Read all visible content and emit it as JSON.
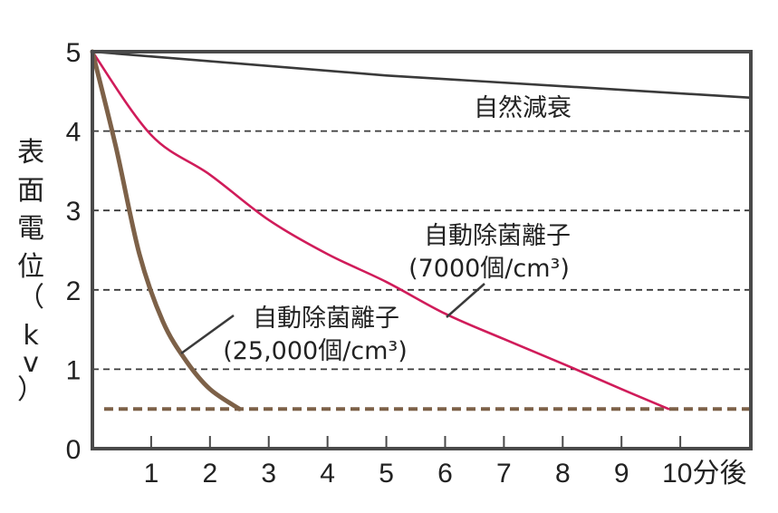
{
  "chart_data": {
    "type": "line",
    "title": "",
    "xlabel": "",
    "ylabel": "表面電位（kv）",
    "xlim": [
      0,
      11.2
    ],
    "ylim": [
      0,
      5
    ],
    "x_ticks": [
      "1",
      "2",
      "3",
      "4",
      "5",
      "6",
      "7",
      "8",
      "9",
      "10分後"
    ],
    "y_ticks": [
      "0",
      "1",
      "2",
      "3",
      "4",
      "5"
    ],
    "grid": "dashed horizontal at 1, 2, 3, 4",
    "reference_line": {
      "y": 0.5,
      "style": "dashed",
      "color": "#7d6148"
    },
    "series": [
      {
        "name": "自然減衰",
        "color": "#3a3a3a",
        "x": [
          0,
          5,
          11.2
        ],
        "y": [
          5,
          4.7,
          4.42
        ]
      },
      {
        "name": "自動除菌離子 (7000個/cm³)",
        "color": "#d01c5a",
        "x": [
          0,
          1,
          2,
          3,
          4,
          5,
          6,
          7,
          8,
          9,
          9.8
        ],
        "y": [
          5,
          3.95,
          3.45,
          2.88,
          2.45,
          2.1,
          1.7,
          1.38,
          1.07,
          0.75,
          0.5
        ]
      },
      {
        "name": "自動除菌離子 (25,000個/cm³)",
        "color": "#7d6148",
        "x": [
          0,
          0.4,
          0.8,
          1.2,
          1.6,
          2.0,
          2.5
        ],
        "y": [
          5,
          3.8,
          2.45,
          1.6,
          1.1,
          0.75,
          0.5
        ]
      }
    ],
    "annotations": [
      {
        "text": "自然減衰",
        "points_to": "自然減衰"
      },
      {
        "line1": "自動除菌離子",
        "line2": "(7000個/cm³)",
        "points_to": "7000"
      },
      {
        "line1": "自動除菌離子",
        "line2": "(25,000個/cm³)",
        "points_to": "25000"
      }
    ],
    "legend": "none (inline annotations)"
  }
}
